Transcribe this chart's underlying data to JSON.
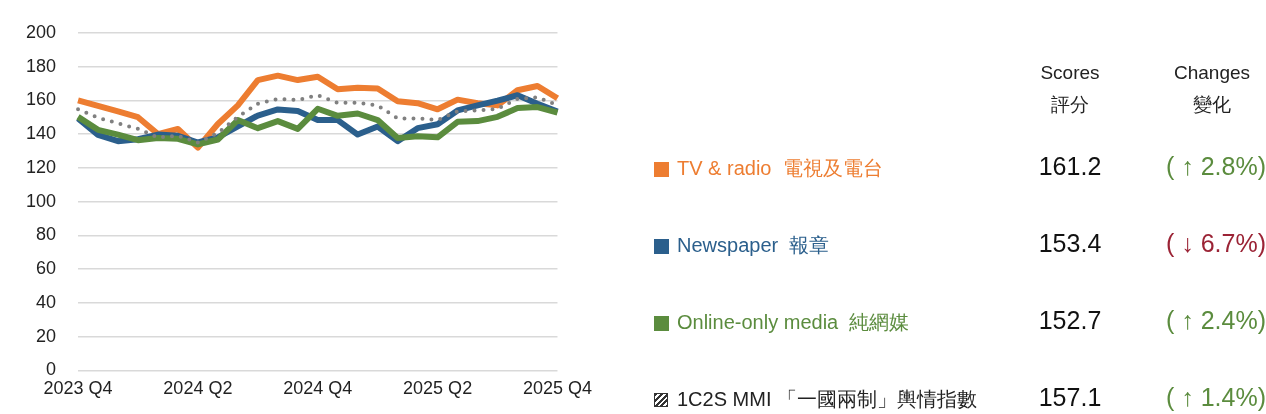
{
  "chart_data": {
    "type": "line",
    "categories": [
      "2023 Q4",
      null,
      null,
      null,
      null,
      null,
      "2024 Q2",
      null,
      null,
      null,
      null,
      null,
      "2024 Q4",
      null,
      null,
      null,
      null,
      null,
      "2025 Q2",
      null,
      null,
      null,
      null,
      null,
      "2025 Q4"
    ],
    "ylim": [
      0,
      200
    ],
    "yticks": [
      0,
      20,
      40,
      60,
      80,
      100,
      120,
      140,
      160,
      180,
      200
    ],
    "grid": "y",
    "legend": "right",
    "marker": "none",
    "series": [
      {
        "name": "TV & radio  電視及電台",
        "color": "#ed7d31",
        "values": [
          160,
          156.7,
          153.5,
          150,
          140,
          143,
          132,
          146,
          157,
          172,
          174.6,
          172,
          174,
          166.6,
          167.5,
          167,
          159.5,
          158.3,
          154.7,
          160.4,
          158.3,
          157,
          166,
          168.5,
          161.2
        ]
      },
      {
        "name": "Newspaper  報章",
        "color": "#2b5f8c",
        "values": [
          149.3,
          139.5,
          135.8,
          137,
          139.7,
          139,
          135,
          138,
          144.5,
          151,
          154.6,
          153.7,
          148.3,
          148.3,
          139.7,
          144.5,
          135.8,
          143.5,
          145.8,
          154,
          157,
          159.8,
          163,
          158,
          153.4
        ]
      },
      {
        "name": "Online-only media  純網媒",
        "color": "#5b8c3e",
        "values": [
          150.2,
          142.5,
          139.7,
          136.4,
          137.7,
          137.2,
          133.9,
          136.8,
          148.3,
          143.5,
          147.7,
          143.1,
          155,
          150.8,
          152.2,
          148.3,
          137.7,
          138.7,
          138.1,
          147.3,
          147.7,
          150.2,
          155.4,
          156,
          152.7
        ]
      },
      {
        "name": "1C2S MMI 「一國兩制」輿情指數",
        "color": "#808080",
        "line_style": "dotted",
        "values": [
          154.7,
          149.7,
          146.4,
          143.1,
          138,
          139,
          135,
          140.6,
          150.2,
          158,
          160.8,
          160.2,
          163,
          158.5,
          158.5,
          157,
          149.3,
          149.3,
          148.3,
          153.5,
          154,
          155,
          160.8,
          161.8,
          157.1
        ]
      }
    ],
    "annotations": [
      "Scores",
      "評分",
      "Changes",
      "變化",
      "161.2",
      "( ↑ 2.8%)",
      "153.4",
      "( ↓ 6.7%)",
      "152.7",
      "( ↑ 2.4%)",
      "157.1",
      "( ↑ 1.4%)"
    ]
  }
}
